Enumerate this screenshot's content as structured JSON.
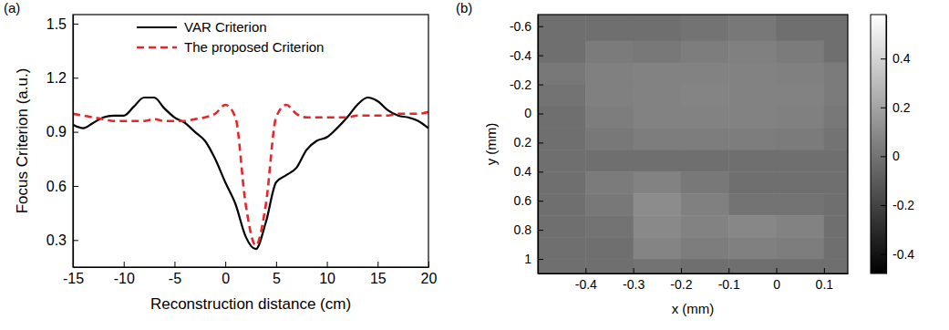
{
  "chart_data": [
    {
      "type": "line",
      "panel_label": "(a)",
      "x_label": "Reconstruction distance (cm)",
      "y_label": "Focus Criterion (a.u.)",
      "x": [
        -15,
        -14,
        -13,
        -12,
        -11,
        -10,
        -9,
        -8,
        -7,
        -6,
        -5,
        -4,
        -3,
        -2,
        -1,
        0,
        1,
        2,
        3,
        4,
        5,
        6,
        7,
        8,
        9,
        10,
        11,
        12,
        13,
        14,
        15,
        16,
        17,
        18,
        19,
        20
      ],
      "series": [
        {
          "name": "VAR Criterion",
          "color": "#000000",
          "line_style": "solid",
          "values": [
            0.94,
            0.92,
            0.95,
            0.98,
            0.99,
            0.99,
            1.04,
            1.09,
            1.09,
            1.03,
            0.98,
            0.95,
            0.9,
            0.85,
            0.75,
            0.62,
            0.5,
            0.32,
            0.25,
            0.4,
            0.62,
            0.66,
            0.7,
            0.8,
            0.85,
            0.87,
            0.92,
            0.98,
            1.05,
            1.09,
            1.07,
            1.02,
            0.99,
            0.98,
            0.96,
            0.92
          ]
        },
        {
          "name": "The proposed Criterion",
          "color": "#e8262a",
          "line_style": "dashed",
          "values": [
            1.0,
            0.99,
            0.98,
            0.97,
            0.96,
            0.96,
            0.96,
            0.96,
            0.97,
            0.96,
            0.96,
            0.96,
            0.97,
            0.98,
            1.0,
            1.05,
            0.98,
            0.5,
            0.27,
            0.5,
            0.98,
            1.05,
            1.0,
            0.98,
            0.98,
            0.98,
            0.98,
            0.98,
            0.99,
            0.99,
            0.99,
            0.99,
            1.0,
            1.0,
            1.0,
            1.01
          ]
        }
      ],
      "xlim": [
        -15,
        20
      ],
      "xticks": [
        -15,
        -10,
        -5,
        0,
        5,
        10,
        15,
        20
      ],
      "ylim": [
        0.15,
        1.55
      ],
      "yticks": [
        0.3,
        0.6,
        0.9,
        1.2,
        1.5
      ],
      "legend": "top"
    },
    {
      "type": "heatmap",
      "panel_label": "(b)",
      "x_label": "x (mm)",
      "y_label": "y (mm)",
      "x_edges": [
        -0.5,
        -0.4,
        -0.3,
        -0.2,
        -0.1,
        0,
        0.1,
        0.15
      ],
      "y_edges": [
        -0.68,
        -0.5,
        -0.35,
        -0.2,
        -0.05,
        0.1,
        0.25,
        0.4,
        0.55,
        0.7,
        0.85,
        1.0,
        1.1
      ],
      "cells": [
        [
          -0.02,
          -0.02,
          -0.02,
          0.0,
          0.02,
          -0.02,
          -0.02
        ],
        [
          -0.02,
          0.03,
          0.02,
          0.04,
          0.05,
          0.03,
          -0.02
        ],
        [
          0.02,
          0.05,
          0.06,
          0.06,
          0.06,
          0.05,
          0.03
        ],
        [
          0.0,
          0.05,
          0.06,
          0.07,
          0.06,
          0.06,
          0.03
        ],
        [
          -0.02,
          0.04,
          0.06,
          0.06,
          0.06,
          0.05,
          0.02
        ],
        [
          -0.02,
          0.02,
          0.04,
          0.04,
          0.04,
          0.03,
          0.0
        ],
        [
          -0.02,
          -0.02,
          -0.02,
          -0.02,
          -0.02,
          -0.02,
          -0.02
        ],
        [
          -0.02,
          0.03,
          0.06,
          0.02,
          -0.02,
          -0.02,
          -0.02
        ],
        [
          -0.02,
          0.02,
          0.1,
          0.05,
          0.0,
          0.0,
          -0.02
        ],
        [
          -0.02,
          0.0,
          0.09,
          0.06,
          0.08,
          0.06,
          -0.02
        ],
        [
          -0.02,
          -0.02,
          0.07,
          0.04,
          0.05,
          0.04,
          -0.02
        ],
        [
          -0.02,
          -0.02,
          0.0,
          -0.02,
          -0.02,
          -0.02,
          -0.02
        ]
      ],
      "xlim": [
        -0.5,
        0.15
      ],
      "xticks": [
        -0.4,
        -0.3,
        -0.2,
        -0.1,
        0,
        0.1
      ],
      "ylim": [
        -0.68,
        1.1
      ],
      "yticks": [
        -0.6,
        -0.4,
        -0.2,
        0,
        0.2,
        0.4,
        0.6,
        0.8,
        1
      ],
      "colorbar_range": [
        -0.48,
        0.58
      ],
      "colorbar_ticks": [
        -0.4,
        -0.2,
        0,
        0.2,
        0.4
      ]
    }
  ]
}
